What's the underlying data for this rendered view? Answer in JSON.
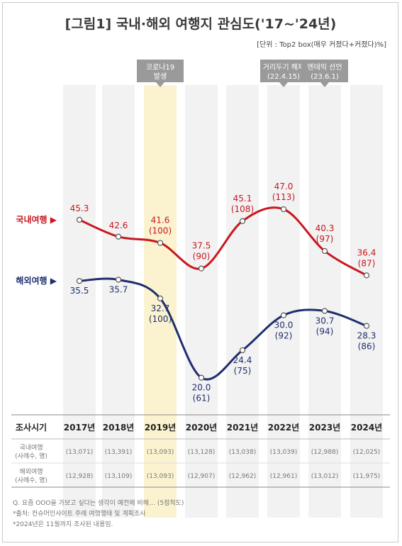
{
  "title": "[그림1] 국내·해외 여행지 관심도('17~'24년)",
  "unit_note": "[단위 : Top2 box(매우 커졌다+커졌다)%]",
  "events": [
    {
      "line1": "코로나19",
      "line2": "발생",
      "year": "2019년"
    },
    {
      "line1": "거리두기 해제",
      "line2": "(22.4.15)",
      "year": "2022년"
    },
    {
      "line1": "엔데믹 선언",
      "line2": "(23.6.1)",
      "year": "2023년"
    }
  ],
  "chart_data": {
    "type": "line",
    "categories": [
      "2017년",
      "2018년",
      "2019년",
      "2020년",
      "2021년",
      "2022년",
      "2023년",
      "2024년"
    ],
    "series": [
      {
        "name": "국내여행",
        "color": "#c8171e",
        "values": [
          45.3,
          42.6,
          41.6,
          37.5,
          45.1,
          47.0,
          40.3,
          36.4
        ],
        "index_labels": [
          "",
          "",
          "(100)",
          "(90)",
          "(108)",
          "(113)",
          "(97)",
          "(87)"
        ]
      },
      {
        "name": "해외여행",
        "color": "#1f2f6e",
        "values": [
          35.5,
          35.7,
          32.7,
          20.0,
          24.4,
          30.0,
          30.7,
          28.3
        ],
        "index_labels": [
          "",
          "",
          "(100)",
          "(61)",
          "(75)",
          "(92)",
          "(94)",
          "(86)"
        ]
      }
    ],
    "value_labels": {
      "국내여행": [
        "45.3",
        "42.6",
        "41.6",
        "37.5",
        "45.1",
        "47.0",
        "40.3",
        "36.4"
      ],
      "해외여행": [
        "35.5",
        "35.7",
        "32.7",
        "20.0",
        "24.4",
        "30.0",
        "30.7",
        "28.3"
      ]
    },
    "highlight_category": "2019년"
  },
  "table": {
    "header_label": "조사시기",
    "rows": [
      {
        "label1": "국내여행",
        "label2": "(사례수, 명)",
        "values": [
          "(13,071)",
          "(13,391)",
          "(13,093)",
          "(13,128)",
          "(13,038)",
          "(13,039)",
          "(12,988)",
          "(12,025)"
        ]
      },
      {
        "label1": "해외여행",
        "label2": "(사례수, 명)",
        "values": [
          "(12,928)",
          "(13,109)",
          "(13,093)",
          "(12,907)",
          "(12,962)",
          "(12,961)",
          "(13,012)",
          "(11,975)"
        ]
      }
    ]
  },
  "footnotes": [
    "Q. 요즘 OOO을 가보고 싶다는 생각이 예전에 비해… (5점척도)",
    "*출처: 컨슈머인사이트 주례 여행행태 및 계획조사",
    "*2024년은 11월까지 조사된 내용임."
  ]
}
